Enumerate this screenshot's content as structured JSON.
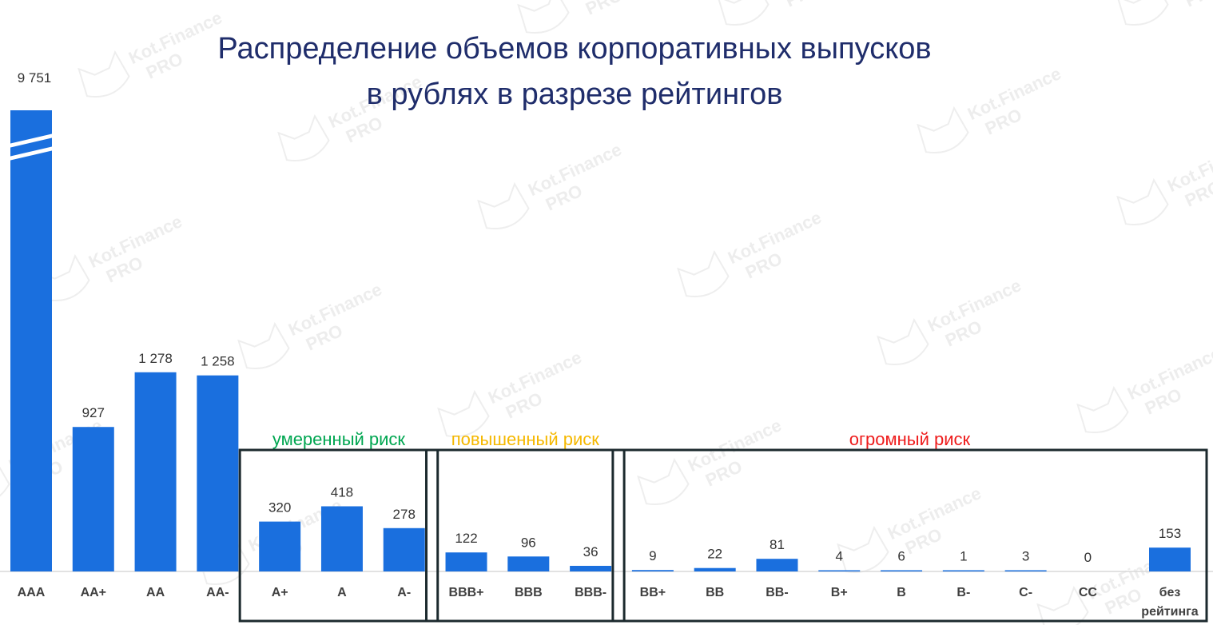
{
  "chart_data": {
    "type": "bar",
    "title_line1": "Распределение объемов корпоративных выпусков",
    "title_line2": "в рублях в разрезе рейтингов",
    "xlabel": "",
    "ylabel": "",
    "categories": [
      "AAA",
      "AA+",
      "AA",
      "AA-",
      "A+",
      "A",
      "A-",
      "BBB+",
      "BBB",
      "BBB-",
      "BB+",
      "BB",
      "BB-",
      "B+",
      "B",
      "B-",
      "C-",
      "CC",
      "без рейтинга"
    ],
    "values": [
      9751,
      927,
      1278,
      1258,
      320,
      418,
      278,
      122,
      96,
      36,
      9,
      22,
      81,
      4,
      6,
      1,
      3,
      0,
      153
    ],
    "value_labels": [
      "9 751",
      "927",
      "1 278",
      "1 258",
      "320",
      "418",
      "278",
      "122",
      "96",
      "36",
      "9",
      "22",
      "81",
      "4",
      "6",
      "1",
      "3",
      "0",
      "153"
    ],
    "truncated_first_bar": true,
    "bar_color": "#1a6fde",
    "grid": false,
    "groups": [
      {
        "label": "умеренный риск",
        "color": "#00a651",
        "from": 4,
        "to": 6
      },
      {
        "label": "повышенный риск",
        "color": "#f5b800",
        "from": 7,
        "to": 9
      },
      {
        "label": "огромный риск",
        "color": "#ee1c1c",
        "from": 10,
        "to": 18
      }
    ]
  },
  "watermark": {
    "brand": "Kot.Finance",
    "badge": "PRO"
  }
}
